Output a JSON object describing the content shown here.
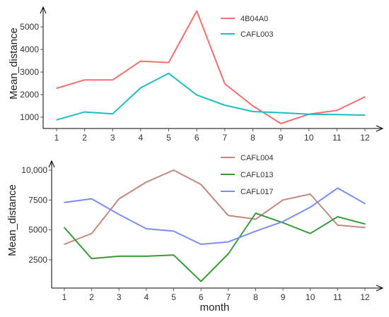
{
  "chart_data": [
    {
      "type": "line",
      "xlabel": "",
      "ylabel": "Mean_distance",
      "x": [
        1,
        2,
        3,
        4,
        5,
        6,
        7,
        8,
        9,
        10,
        11,
        12
      ],
      "xticks": [
        "1",
        "2",
        "3",
        "4",
        "5",
        "6",
        "7",
        "8",
        "9",
        "10",
        "11",
        "12"
      ],
      "ylim": [
        650,
        6000
      ],
      "yticks": [
        1000,
        2000,
        3000,
        4000,
        5000
      ],
      "ytick_labels": [
        "1000",
        "2000",
        "3000",
        "4000",
        "5000"
      ],
      "legend_position": "top-center",
      "grid": false,
      "series": [
        {
          "name": "4B04A0",
          "color": "#f07070",
          "values": [
            2280,
            2650,
            2650,
            3480,
            3420,
            5700,
            2480,
            1500,
            720,
            1130,
            1300,
            1900
          ]
        },
        {
          "name": "CAFL003",
          "color": "#1bbfbf",
          "values": [
            880,
            1230,
            1150,
            2300,
            2940,
            1980,
            1530,
            1250,
            1200,
            1130,
            1120,
            1090
          ]
        }
      ]
    },
    {
      "type": "line",
      "xlabel": "month",
      "ylabel": "Mean_distance",
      "x": [
        1,
        2,
        3,
        4,
        5,
        6,
        7,
        8,
        9,
        10,
        11,
        12
      ],
      "xticks": [
        "1",
        "2",
        "3",
        "4",
        "5",
        "6",
        "7",
        "8",
        "9",
        "10",
        "11",
        "12"
      ],
      "ylim": [
        0,
        10300
      ],
      "yticks": [
        2500,
        5000,
        7500,
        10000
      ],
      "ytick_labels": [
        "2500",
        "5000",
        "7500",
        "10,000"
      ],
      "legend_position": "top-center",
      "grid": false,
      "series": [
        {
          "name": "CAFL004",
          "color": "#c08a80",
          "values": [
            3800,
            4700,
            7600,
            9000,
            10000,
            8800,
            6200,
            5900,
            7500,
            8000,
            5400,
            5200
          ]
        },
        {
          "name": "CAFL013",
          "color": "#3a9a3a",
          "values": [
            5200,
            2600,
            2800,
            2800,
            2900,
            700,
            3000,
            6400,
            5600,
            4700,
            6100,
            5500
          ]
        },
        {
          "name": "CAFL017",
          "color": "#7b8ef0",
          "values": [
            7300,
            7600,
            6300,
            5100,
            4900,
            3800,
            4000,
            4900,
            5700,
            6900,
            8500,
            7200
          ]
        }
      ]
    }
  ]
}
